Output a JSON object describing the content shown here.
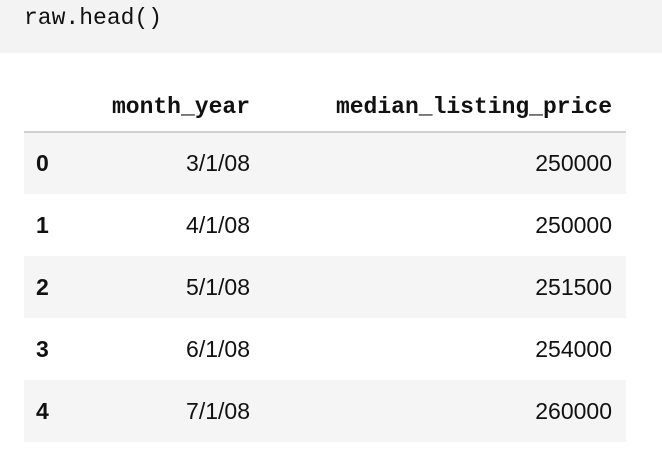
{
  "code_cell": {
    "code": "raw.head()"
  },
  "table": {
    "columns": [
      "",
      "month_year",
      "median_listing_price"
    ],
    "rows": [
      {
        "index": "0",
        "month_year": "3/1/08",
        "median_listing_price": "250000"
      },
      {
        "index": "1",
        "month_year": "4/1/08",
        "median_listing_price": "250000"
      },
      {
        "index": "2",
        "month_year": "5/1/08",
        "median_listing_price": "251500"
      },
      {
        "index": "3",
        "month_year": "6/1/08",
        "median_listing_price": "254000"
      },
      {
        "index": "4",
        "month_year": "7/1/08",
        "median_listing_price": "260000"
      }
    ]
  },
  "colors": {
    "code_background": "#f3f3f3",
    "striped_row": "#f5f5f5",
    "header_rule": "#cfcfcf"
  }
}
